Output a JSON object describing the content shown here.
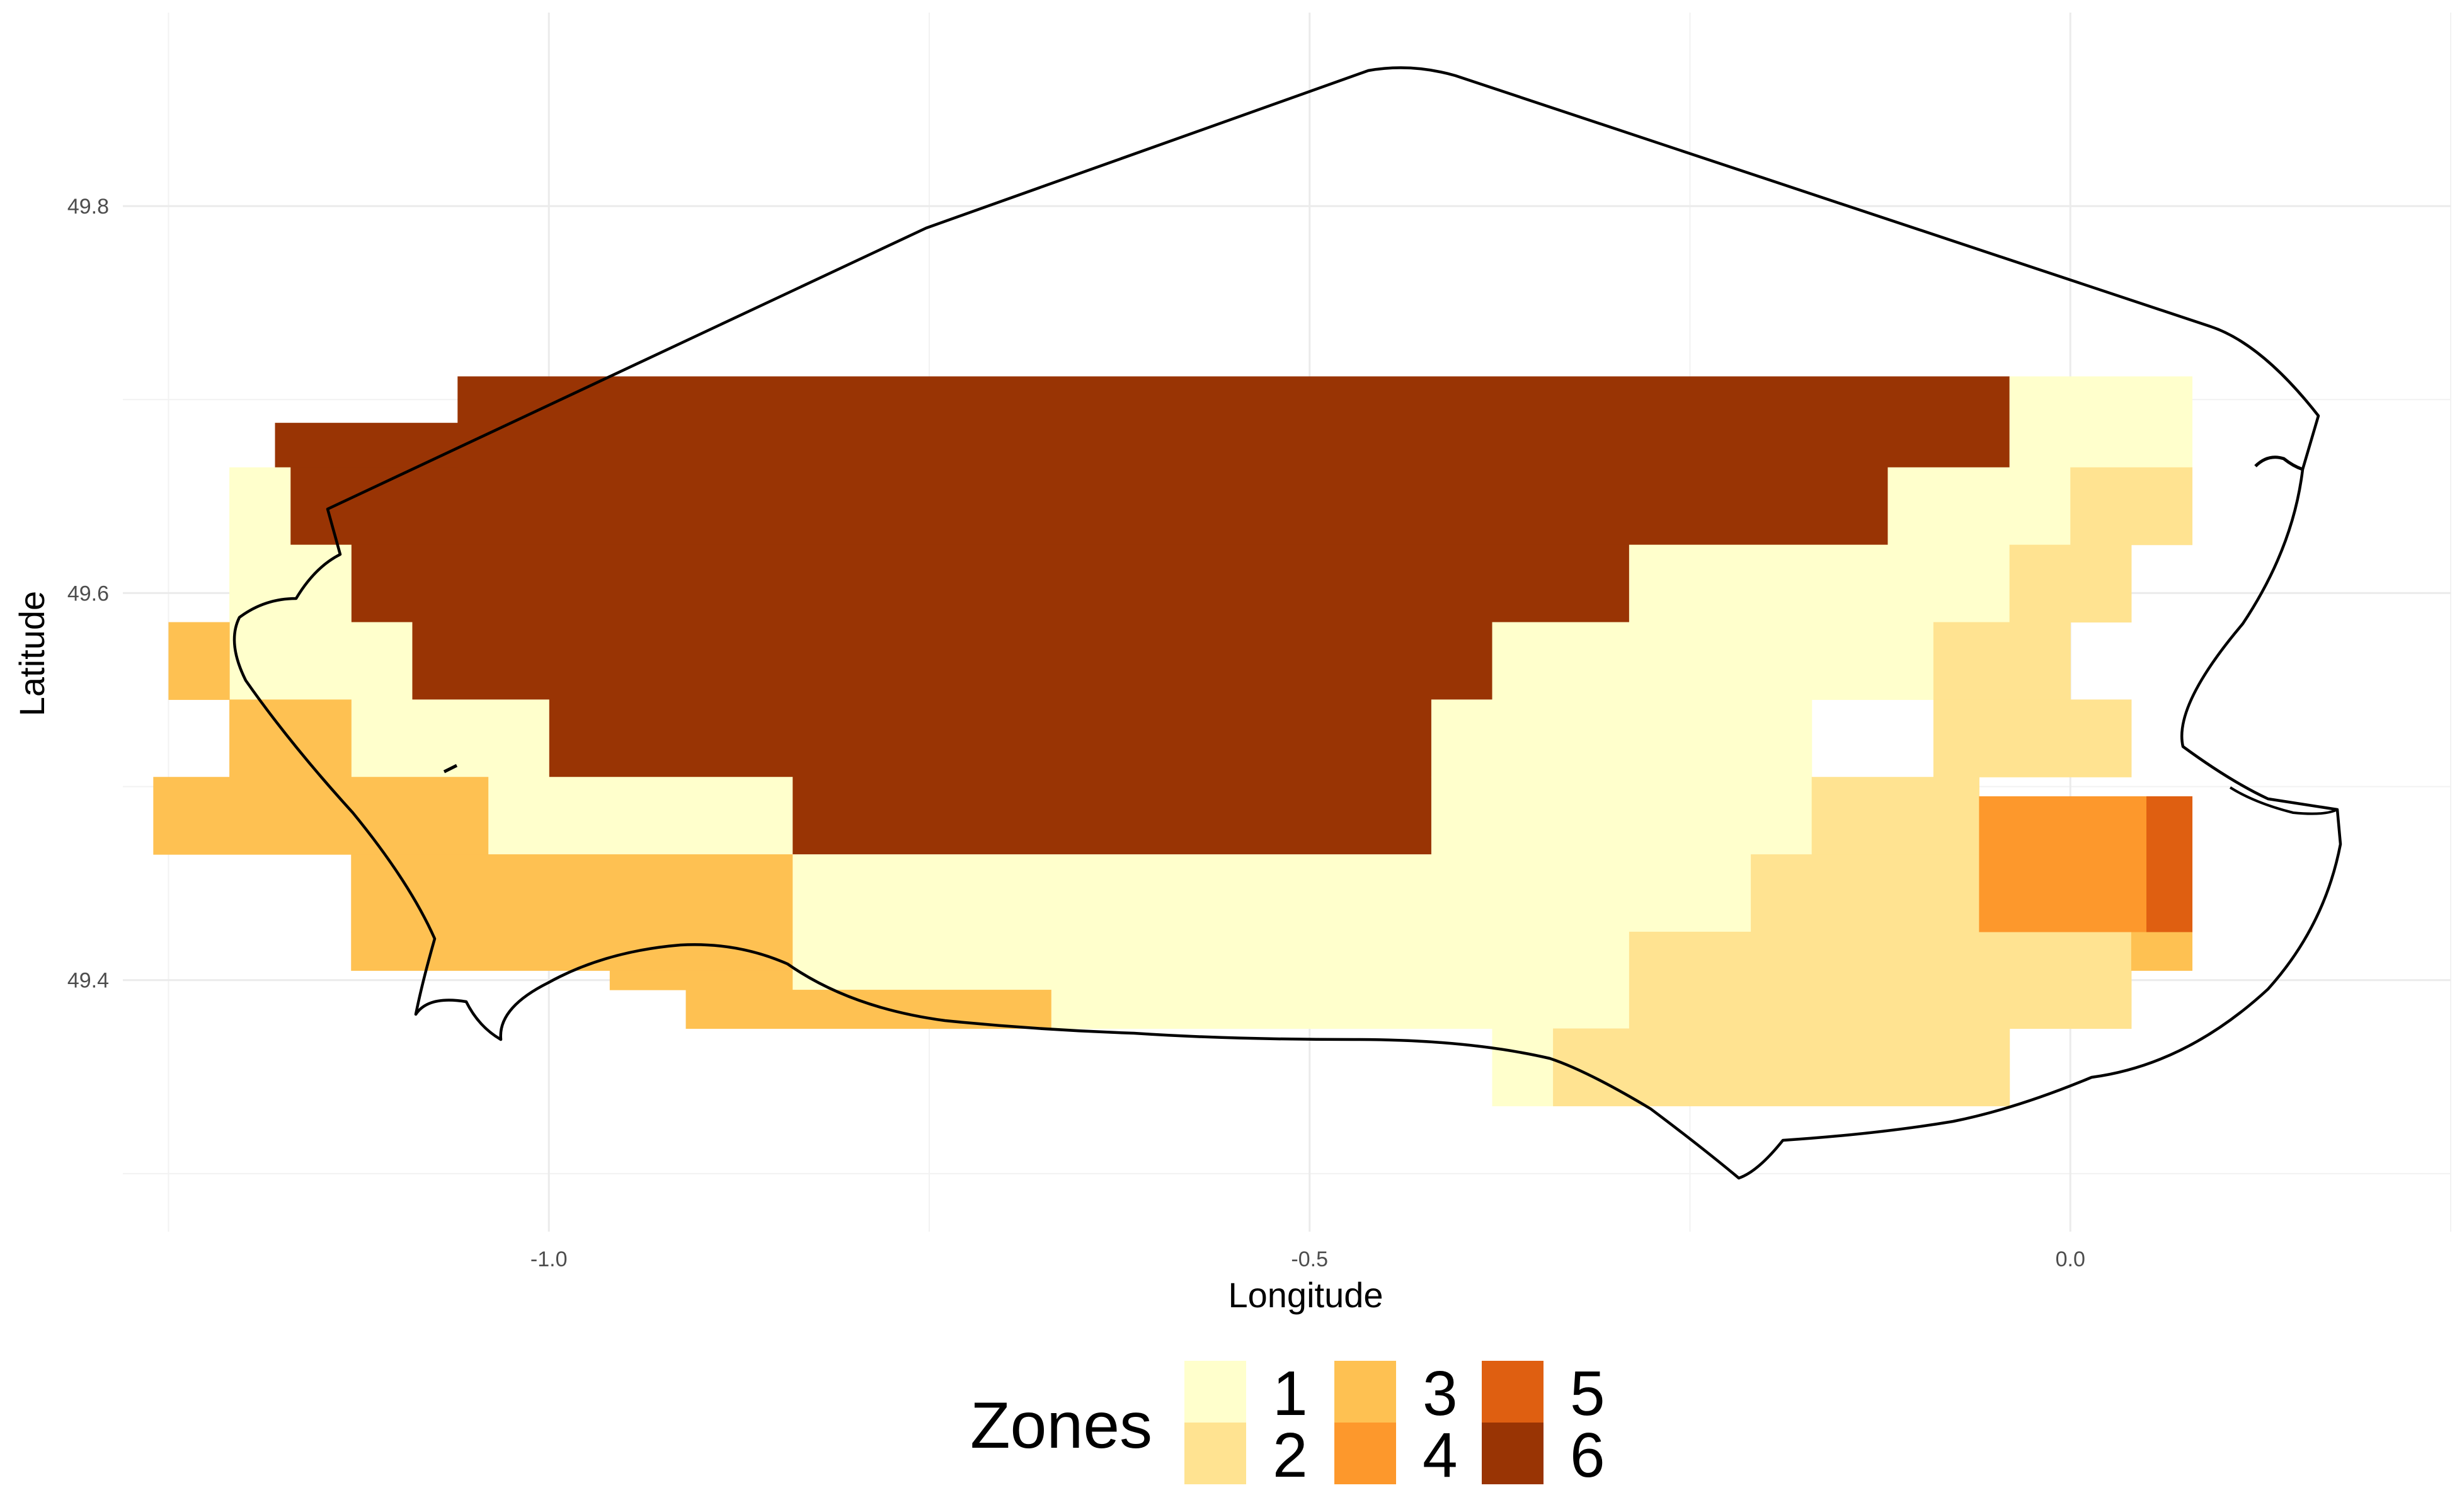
{
  "chart_data": {
    "type": "heatmap",
    "xlabel": "Longitude",
    "ylabel": "Latitude",
    "xlim": [
      -1.28,
      0.25
    ],
    "ylim": [
      49.27,
      49.9
    ],
    "x_ticks": [
      -1.0,
      -0.5,
      0.0
    ],
    "x_tick_labels": [
      "-1.0",
      "-0.5",
      "0.0"
    ],
    "y_ticks": [
      49.4,
      49.6,
      49.8
    ],
    "y_tick_labels": [
      "49.4",
      "49.6",
      "49.8"
    ],
    "grid": true,
    "legend": {
      "title": "Zones",
      "placement": "bottom",
      "entries": [
        {
          "label": "1",
          "color": "#FFFFCC"
        },
        {
          "label": "2",
          "color": "#FFE391"
        },
        {
          "label": "3",
          "color": "#FEC152"
        },
        {
          "label": "4",
          "color": "#FD982C"
        },
        {
          "label": "5",
          "color": "#DF5F11"
        },
        {
          "label": "6",
          "color": "#993404"
        }
      ]
    },
    "cells": [
      {
        "zone": 6,
        "lon": [
          -1.06,
          -0.04
        ],
        "lat": [
          49.665,
          49.712
        ]
      },
      {
        "zone": 6,
        "lon": [
          -1.17,
          -0.12
        ],
        "lat": [
          49.625,
          49.665
        ]
      },
      {
        "zone": 6,
        "lon": [
          -1.13,
          -0.29
        ],
        "lat": [
          49.585,
          49.625
        ]
      },
      {
        "zone": 6,
        "lon": [
          -1.09,
          -0.38
        ],
        "lat": [
          49.545,
          49.585
        ]
      },
      {
        "zone": 6,
        "lon": [
          -1.0,
          -0.42
        ],
        "lat": [
          49.505,
          49.545
        ]
      },
      {
        "zone": 6,
        "lon": [
          -0.84,
          -0.42
        ],
        "lat": [
          49.465,
          49.505
        ]
      },
      {
        "zone": 6,
        "lon": [
          -1.18,
          -1.06
        ],
        "lat": [
          49.665,
          49.688
        ]
      },
      {
        "zone": 1,
        "lon": [
          -0.04,
          0.08
        ],
        "lat": [
          49.665,
          49.712
        ]
      },
      {
        "zone": 1,
        "lon": [
          -0.12,
          0.0
        ],
        "lat": [
          49.625,
          49.665
        ]
      },
      {
        "zone": 1,
        "lon": [
          -0.29,
          -0.04
        ],
        "lat": [
          49.585,
          49.625
        ]
      },
      {
        "zone": 1,
        "lon": [
          -0.38,
          -0.09
        ],
        "lat": [
          49.545,
          49.585
        ]
      },
      {
        "zone": 1,
        "lon": [
          -0.42,
          -0.17
        ],
        "lat": [
          49.505,
          49.545
        ]
      },
      {
        "zone": 1,
        "lon": [
          -0.42,
          -0.17
        ],
        "lat": [
          49.465,
          49.505
        ]
      },
      {
        "zone": 1,
        "lon": [
          -0.84,
          -0.21
        ],
        "lat": [
          49.425,
          49.465
        ]
      },
      {
        "zone": 1,
        "lon": [
          -0.84,
          -0.29
        ],
        "lat": [
          49.395,
          49.425
        ]
      },
      {
        "zone": 1,
        "lon": [
          -0.67,
          -0.29
        ],
        "lat": [
          49.375,
          49.395
        ]
      },
      {
        "zone": 1,
        "lon": [
          -0.38,
          -0.34
        ],
        "lat": [
          49.335,
          49.375
        ]
      },
      {
        "zone": 1,
        "lon": [
          -1.21,
          -1.17
        ],
        "lat": [
          49.625,
          49.665
        ]
      },
      {
        "zone": 1,
        "lon": [
          -1.21,
          -1.13
        ],
        "lat": [
          49.585,
          49.625
        ]
      },
      {
        "zone": 1,
        "lon": [
          -1.21,
          -1.09
        ],
        "lat": [
          49.545,
          49.585
        ]
      },
      {
        "zone": 1,
        "lon": [
          -1.13,
          -1.0
        ],
        "lat": [
          49.505,
          49.545
        ]
      },
      {
        "zone": 1,
        "lon": [
          -1.04,
          -0.84
        ],
        "lat": [
          49.465,
          49.505
        ]
      },
      {
        "zone": 2,
        "lon": [
          0.0,
          0.08
        ],
        "lat": [
          49.625,
          49.665
        ]
      },
      {
        "zone": 2,
        "lon": [
          -0.04,
          0.04
        ],
        "lat": [
          49.585,
          49.625
        ]
      },
      {
        "zone": 2,
        "lon": [
          -0.09,
          0.0
        ],
        "lat": [
          49.545,
          49.585
        ]
      },
      {
        "zone": 2,
        "lon": [
          -0.09,
          0.04
        ],
        "lat": [
          49.505,
          49.545
        ]
      },
      {
        "zone": 2,
        "lon": [
          -0.17,
          -0.06
        ],
        "lat": [
          49.465,
          49.505
        ]
      },
      {
        "zone": 2,
        "lon": [
          -0.21,
          -0.06
        ],
        "lat": [
          49.425,
          49.465
        ]
      },
      {
        "zone": 2,
        "lon": [
          -0.29,
          0.04
        ],
        "lat": [
          49.375,
          49.425
        ]
      },
      {
        "zone": 2,
        "lon": [
          -0.34,
          -0.04
        ],
        "lat": [
          49.335,
          49.375
        ]
      },
      {
        "zone": 3,
        "lon": [
          -1.25,
          -1.21
        ],
        "lat": [
          49.545,
          49.585
        ]
      },
      {
        "zone": 3,
        "lon": [
          -1.21,
          -1.13
        ],
        "lat": [
          49.505,
          49.545
        ]
      },
      {
        "zone": 3,
        "lon": [
          -1.26,
          -1.04
        ],
        "lat": [
          49.465,
          49.505
        ]
      },
      {
        "zone": 3,
        "lon": [
          -1.13,
          -0.84
        ],
        "lat": [
          49.425,
          49.465
        ]
      },
      {
        "zone": 3,
        "lon": [
          -1.13,
          -0.84
        ],
        "lat": [
          49.405,
          49.425
        ]
      },
      {
        "zone": 3,
        "lon": [
          -0.96,
          -0.84
        ],
        "lat": [
          49.395,
          49.405
        ]
      },
      {
        "zone": 3,
        "lon": [
          -0.91,
          -0.67
        ],
        "lat": [
          49.375,
          49.395
        ]
      },
      {
        "zone": 3,
        "lon": [
          0.04,
          0.08
        ],
        "lat": [
          49.405,
          49.425
        ]
      },
      {
        "zone": 4,
        "lon": [
          -0.06,
          0.05
        ],
        "lat": [
          49.425,
          49.495
        ]
      },
      {
        "zone": 5,
        "lon": [
          0.05,
          0.08
        ],
        "lat": [
          49.425,
          49.495
        ]
      }
    ]
  }
}
